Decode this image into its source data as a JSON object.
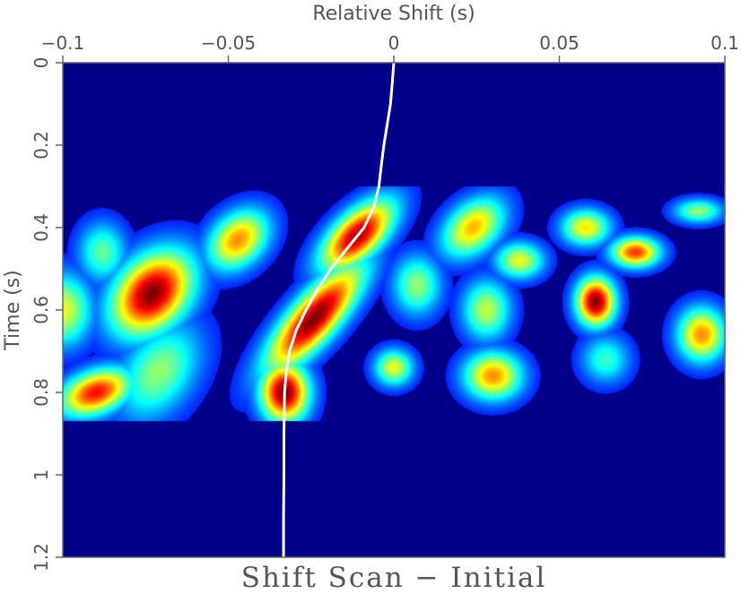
{
  "chart_data": {
    "type": "heatmap",
    "title": "Shift Scan − Initial",
    "xlabel": "Relative Shift (s)",
    "ylabel": "Time (s)",
    "xlim": [
      -0.1,
      0.1
    ],
    "ylim": [
      0,
      1.2
    ],
    "x_axis_position": "top",
    "y_inverted": true,
    "x_ticks": [
      {
        "value": -0.1,
        "label": "−0.1"
      },
      {
        "value": -0.05,
        "label": "−0.05"
      },
      {
        "value": 0,
        "label": "0"
      },
      {
        "value": 0.05,
        "label": "0.05"
      },
      {
        "value": 0.1,
        "label": "0.1"
      }
    ],
    "y_ticks": [
      {
        "value": 0,
        "label": "0"
      },
      {
        "value": 0.2,
        "label": "0.2"
      },
      {
        "value": 0.4,
        "label": "0.4"
      },
      {
        "value": 0.6,
        "label": "0.6"
      },
      {
        "value": 0.8,
        "label": "0.8"
      },
      {
        "value": 1,
        "label": "1"
      },
      {
        "value": 1.2,
        "label": "1.2"
      }
    ],
    "colormap": "jet",
    "background_color": "#00008b",
    "energy_blobs": [
      {
        "x": -0.1,
        "y": 0.6,
        "sx": 0.006,
        "sy": 0.06,
        "amp": 0.55
      },
      {
        "x": -0.09,
        "y": 0.8,
        "sx": 0.007,
        "sy": 0.04,
        "amp": 0.85,
        "slope": -0.07
      },
      {
        "x": -0.088,
        "y": 0.46,
        "sx": 0.005,
        "sy": 0.05,
        "amp": 0.4
      },
      {
        "x": -0.073,
        "y": 0.56,
        "sx": 0.008,
        "sy": 0.07,
        "amp": 1.0,
        "slope": -0.04
      },
      {
        "x": -0.071,
        "y": 0.75,
        "sx": 0.008,
        "sy": 0.08,
        "amp": 0.45,
        "slope": -0.04
      },
      {
        "x": -0.047,
        "y": 0.43,
        "sx": 0.006,
        "sy": 0.05,
        "amp": 0.7,
        "slope": -0.04
      },
      {
        "x": -0.033,
        "y": 0.8,
        "sx": 0.005,
        "sy": 0.05,
        "amp": 1.0
      },
      {
        "x": -0.024,
        "y": 0.62,
        "sx": 0.006,
        "sy": 0.09,
        "amp": 1.0,
        "slope": -0.09
      },
      {
        "x": -0.011,
        "y": 0.42,
        "sx": 0.006,
        "sy": 0.06,
        "amp": 0.95,
        "slope": -0.08
      },
      {
        "x": 0.0,
        "y": 0.74,
        "sx": 0.004,
        "sy": 0.03,
        "amp": 0.55
      },
      {
        "x": 0.007,
        "y": 0.54,
        "sx": 0.005,
        "sy": 0.05,
        "amp": 0.45
      },
      {
        "x": 0.024,
        "y": 0.4,
        "sx": 0.006,
        "sy": 0.05,
        "amp": 0.65,
        "slope": -0.05
      },
      {
        "x": 0.028,
        "y": 0.6,
        "sx": 0.005,
        "sy": 0.05,
        "amp": 0.5
      },
      {
        "x": 0.03,
        "y": 0.76,
        "sx": 0.006,
        "sy": 0.04,
        "amp": 0.7
      },
      {
        "x": 0.038,
        "y": 0.48,
        "sx": 0.005,
        "sy": 0.03,
        "amp": 0.55
      },
      {
        "x": 0.058,
        "y": 0.4,
        "sx": 0.005,
        "sy": 0.03,
        "amp": 0.6
      },
      {
        "x": 0.061,
        "y": 0.58,
        "sx": 0.004,
        "sy": 0.04,
        "amp": 1.0
      },
      {
        "x": 0.064,
        "y": 0.72,
        "sx": 0.005,
        "sy": 0.04,
        "amp": 0.35
      },
      {
        "x": 0.073,
        "y": 0.46,
        "sx": 0.005,
        "sy": 0.025,
        "amp": 0.8
      },
      {
        "x": 0.092,
        "y": 0.36,
        "sx": 0.005,
        "sy": 0.02,
        "amp": 0.45
      },
      {
        "x": 0.093,
        "y": 0.66,
        "sx": 0.005,
        "sy": 0.045,
        "amp": 0.7
      }
    ],
    "picked_shift_curve": {
      "color": "#ffffff",
      "points": [
        {
          "t": 0.0,
          "shift": 0.0
        },
        {
          "t": 0.05,
          "shift": -0.0005
        },
        {
          "t": 0.1,
          "shift": -0.001
        },
        {
          "t": 0.15,
          "shift": -0.002
        },
        {
          "t": 0.2,
          "shift": -0.003
        },
        {
          "t": 0.25,
          "shift": -0.0038
        },
        {
          "t": 0.3,
          "shift": -0.0045
        },
        {
          "t": 0.35,
          "shift": -0.006
        },
        {
          "t": 0.4,
          "shift": -0.009
        },
        {
          "t": 0.45,
          "shift": -0.014
        },
        {
          "t": 0.5,
          "shift": -0.019
        },
        {
          "t": 0.55,
          "shift": -0.023
        },
        {
          "t": 0.6,
          "shift": -0.0265
        },
        {
          "t": 0.65,
          "shift": -0.0295
        },
        {
          "t": 0.7,
          "shift": -0.0315
        },
        {
          "t": 0.75,
          "shift": -0.0325
        },
        {
          "t": 0.8,
          "shift": -0.033
        },
        {
          "t": 0.9,
          "shift": -0.0332
        },
        {
          "t": 1.0,
          "shift": -0.0332
        },
        {
          "t": 1.1,
          "shift": -0.0333
        },
        {
          "t": 1.2,
          "shift": -0.0333
        }
      ]
    }
  }
}
